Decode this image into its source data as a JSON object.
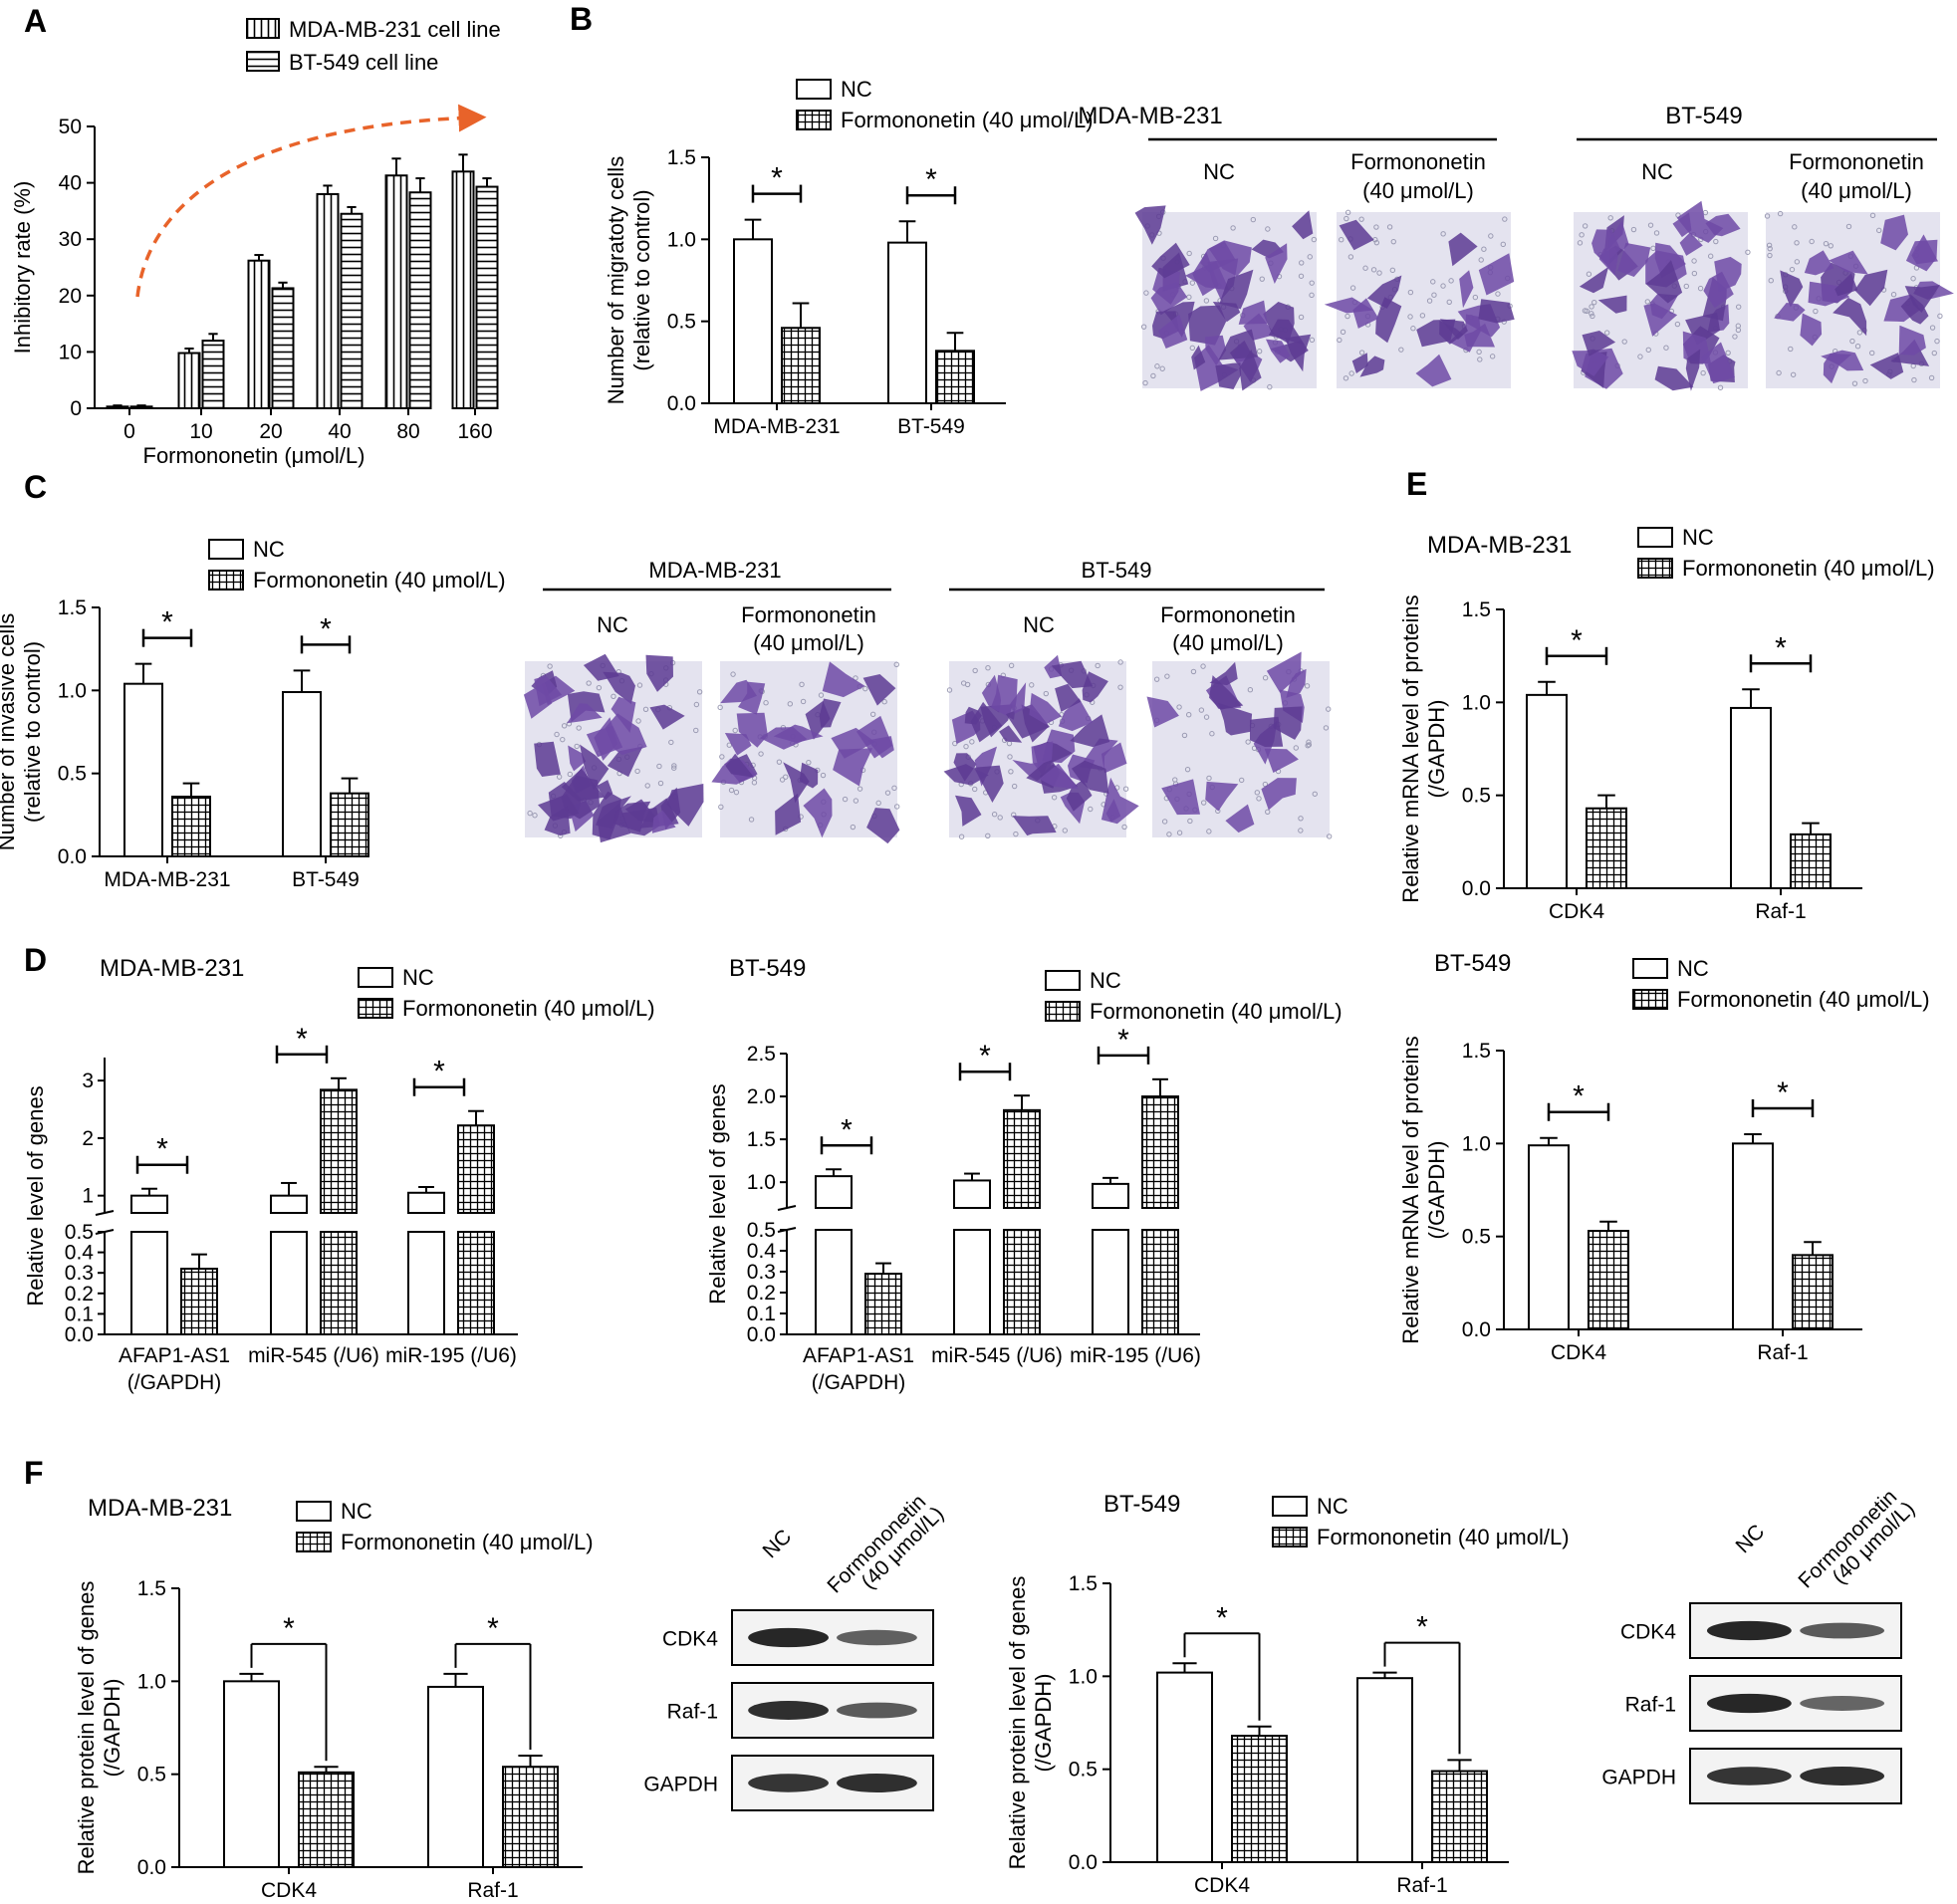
{
  "panel_letters": [
    "A",
    "B",
    "C",
    "D",
    "E",
    "F"
  ],
  "legend": {
    "nc": "NC",
    "formononetin": "Formononetin (40 μmol/L)",
    "mda_cell_line": "MDA-MB-231 cell line",
    "bt_cell_line": "BT-549 cell line"
  },
  "significance_mark": "*",
  "micrographs": {
    "B": {
      "groups": [
        "MDA-MB-231",
        "BT-549"
      ],
      "nc_label": "NC",
      "treat_label_line1": "Formononetin",
      "treat_label_line2": "(40 μmol/L)",
      "cell_density": [
        34,
        18,
        32,
        22
      ]
    },
    "C": {
      "groups": [
        "MDA-MB-231",
        "BT-549"
      ],
      "nc_label": "NC",
      "treat_label_line1": "Formononetin",
      "treat_label_line2": "(40 μmol/L)",
      "cell_density": [
        36,
        22,
        38,
        16
      ]
    }
  },
  "western_blots": {
    "column_labels": [
      "NC",
      "Formononetin",
      "(40 μmol/L)"
    ],
    "bands": [
      "CDK4",
      "Raf-1",
      "GAPDH"
    ],
    "intensity_mda": [
      [
        1.0,
        0.55
      ],
      [
        0.95,
        0.6
      ],
      [
        0.9,
        0.95
      ]
    ],
    "intensity_bt": [
      [
        1.0,
        0.6
      ],
      [
        1.0,
        0.5
      ],
      [
        0.9,
        0.95
      ]
    ]
  },
  "chart_data": [
    {
      "panel": "A",
      "type": "bar",
      "categories": [
        "0",
        "10",
        "20",
        "40",
        "80",
        "160"
      ],
      "xlabel": "Formononetin (μmol/L)",
      "ylabel": "Inhibitory rate  (%)",
      "ylim": [
        0,
        50
      ],
      "yticks": [
        "0",
        "10",
        "20",
        "30",
        "40",
        "50"
      ],
      "series": [
        {
          "name": "MDA-MB-231 cell line",
          "values": [
            0.3,
            9.8,
            26.2,
            38.0,
            41.3,
            42.0
          ],
          "errors": [
            0.2,
            0.8,
            1.0,
            1.5,
            3.0,
            3.0
          ]
        },
        {
          "name": "BT-549 cell line",
          "values": [
            0.3,
            12.0,
            21.3,
            34.5,
            38.3,
            39.3
          ],
          "errors": [
            0.2,
            1.2,
            1.0,
            1.2,
            2.5,
            1.5
          ]
        }
      ]
    },
    {
      "panel": "B",
      "type": "bar",
      "categories": [
        "MDA-MB-231",
        "BT-549"
      ],
      "ylabel": "Number of migratoty cells",
      "ylabel2": "(relative to control)",
      "ylim": [
        0,
        1.5
      ],
      "yticks": [
        "0.0",
        "0.5",
        "1.0",
        "1.5"
      ],
      "series": [
        {
          "name": "NC",
          "values": [
            1.0,
            0.98
          ],
          "errors": [
            0.12,
            0.13
          ]
        },
        {
          "name": "Formononetin (40 μmol/L)",
          "values": [
            0.46,
            0.32
          ],
          "errors": [
            0.15,
            0.11
          ]
        }
      ]
    },
    {
      "panel": "C",
      "type": "bar",
      "categories": [
        "MDA-MB-231",
        "BT-549"
      ],
      "ylabel": "Number of invasive cells",
      "ylabel2": "(relative to control)",
      "ylim": [
        0,
        1.5
      ],
      "yticks": [
        "0.0",
        "0.5",
        "1.0",
        "1.5"
      ],
      "series": [
        {
          "name": "NC",
          "values": [
            1.04,
            0.99
          ],
          "errors": [
            0.12,
            0.13
          ]
        },
        {
          "name": "Formononetin (40 μmol/L)",
          "values": [
            0.36,
            0.38
          ],
          "errors": [
            0.08,
            0.09
          ]
        }
      ]
    },
    {
      "panel": "D",
      "title": "MDA-MB-231",
      "type": "bar",
      "categories": [
        "AFAP1-AS1\n(/GAPDH)",
        "miR-545 (/U6)",
        "miR-195 (/U6)"
      ],
      "ylabel": "Relative level of genes",
      "broken_axis": {
        "lower": [
          0,
          0.5
        ],
        "upper": [
          0.7,
          3.4
        ]
      },
      "yticks_lower": [
        "0.0",
        "0.1",
        "0.2",
        "0.3",
        "0.4",
        "0.5"
      ],
      "yticks_upper": [
        "1",
        "2",
        "3"
      ],
      "series": [
        {
          "name": "NC",
          "values": [
            1.0,
            1.0,
            1.05
          ],
          "errors": [
            0.12,
            0.22,
            0.1
          ]
        },
        {
          "name": "Formononetin (40 μmol/L)",
          "values": [
            0.32,
            2.84,
            2.22
          ],
          "errors": [
            0.07,
            0.2,
            0.25
          ]
        }
      ]
    },
    {
      "panel": "D",
      "title": "BT-549",
      "type": "bar",
      "categories": [
        "AFAP1-AS1\n(/GAPDH)",
        "miR-545  (/U6)",
        "miR-195  (/U6)"
      ],
      "ylabel": "Relative level of genes",
      "broken_axis": {
        "lower": [
          0,
          0.5
        ],
        "upper": [
          0.7,
          2.5
        ]
      },
      "yticks_lower": [
        "0.0",
        "0.1",
        "0.2",
        "0.3",
        "0.4",
        "0.5"
      ],
      "yticks_upper": [
        "1.0",
        "1.5",
        "2.0",
        "2.5"
      ],
      "series": [
        {
          "name": "NC",
          "values": [
            1.07,
            1.02,
            0.98
          ],
          "errors": [
            0.08,
            0.08,
            0.07
          ]
        },
        {
          "name": "Formononetin (40 μmol/L)",
          "values": [
            0.29,
            1.84,
            2.0
          ],
          "errors": [
            0.05,
            0.17,
            0.2
          ]
        }
      ]
    },
    {
      "panel": "E",
      "title": "MDA-MB-231",
      "type": "bar",
      "categories": [
        "CDK4",
        "Raf-1"
      ],
      "ylabel": "Relative mRNA level of proteins",
      "ylabel2": "(/GAPDH)",
      "ylim": [
        0,
        1.5
      ],
      "yticks": [
        "0.0",
        "0.5",
        "1.0",
        "1.5"
      ],
      "series": [
        {
          "name": "NC",
          "values": [
            1.04,
            0.97
          ],
          "errors": [
            0.07,
            0.1
          ]
        },
        {
          "name": "Formononetin (40 μmol/L)",
          "values": [
            0.43,
            0.29
          ],
          "errors": [
            0.07,
            0.06
          ]
        }
      ]
    },
    {
      "panel": "E",
      "title": "BT-549",
      "type": "bar",
      "categories": [
        "CDK4",
        "Raf-1"
      ],
      "ylabel": "Relative mRNA level of proteins",
      "ylabel2": "(/GAPDH)",
      "ylim": [
        0,
        1.5
      ],
      "yticks": [
        "0.0",
        "0.5",
        "1.0",
        "1.5"
      ],
      "series": [
        {
          "name": "NC",
          "values": [
            0.99,
            1.0
          ],
          "errors": [
            0.04,
            0.05
          ]
        },
        {
          "name": "Formononetin (40 μmol/L)",
          "values": [
            0.53,
            0.4
          ],
          "errors": [
            0.05,
            0.07
          ]
        }
      ]
    },
    {
      "panel": "F",
      "title": "MDA-MB-231",
      "type": "bar",
      "categories": [
        "CDK4",
        "Raf-1"
      ],
      "ylabel": "Relative protein level of genes",
      "ylabel2": "(/GAPDH)",
      "ylim": [
        0,
        1.5
      ],
      "yticks": [
        "0.0",
        "0.5",
        "1.0",
        "1.5"
      ],
      "series": [
        {
          "name": "NC",
          "values": [
            1.0,
            0.97
          ],
          "errors": [
            0.04,
            0.07
          ]
        },
        {
          "name": "Formononetin (40 μmol/L)",
          "values": [
            0.51,
            0.54
          ],
          "errors": [
            0.03,
            0.06
          ]
        }
      ]
    },
    {
      "panel": "F",
      "title": "BT-549",
      "type": "bar",
      "categories": [
        "CDK4",
        "Raf-1"
      ],
      "ylabel": "Relative protein level of genes",
      "ylabel2": "(/GAPDH)",
      "ylim": [
        0,
        1.5
      ],
      "yticks": [
        "0.0",
        "0.5",
        "1.0",
        "1.5"
      ],
      "series": [
        {
          "name": "NC",
          "values": [
            1.02,
            0.99
          ],
          "errors": [
            0.05,
            0.03
          ]
        },
        {
          "name": "Formononetin (40 μmol/L)",
          "values": [
            0.68,
            0.49
          ],
          "errors": [
            0.05,
            0.06
          ]
        }
      ]
    }
  ]
}
